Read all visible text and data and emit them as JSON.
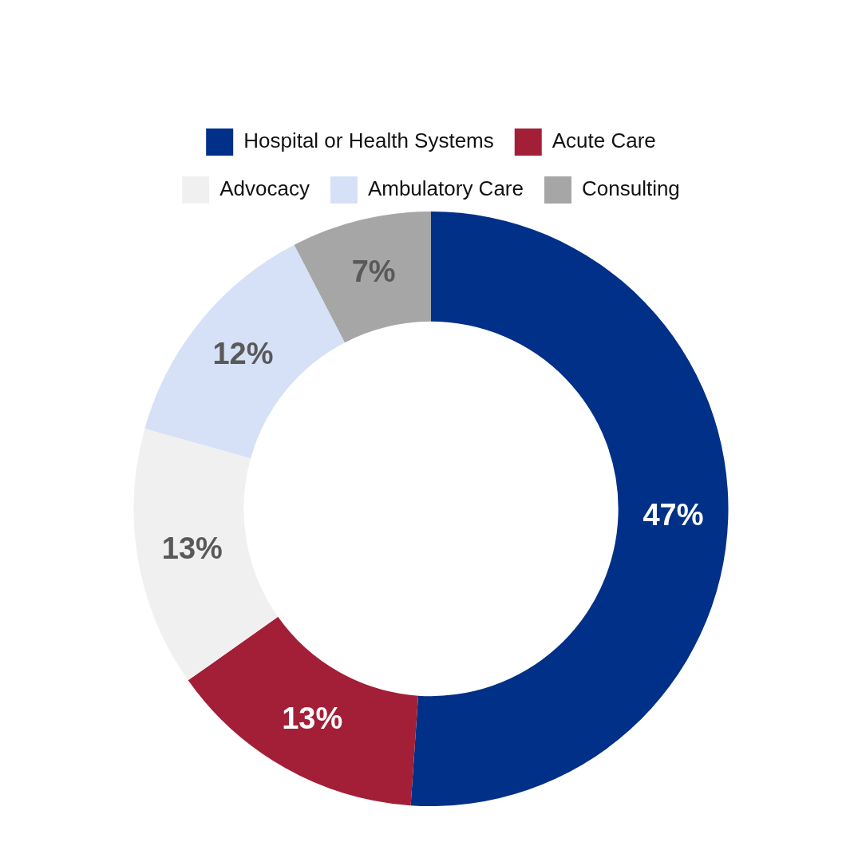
{
  "chart_data": {
    "type": "donut",
    "categories": [
      "Hospital or Health Systems",
      "Acute Care",
      "Advocacy",
      "Ambulatory Care",
      "Consulting"
    ],
    "values": [
      47,
      13,
      13,
      12,
      7
    ],
    "value_labels": [
      "47%",
      "13%",
      "13%",
      "12%",
      "7%"
    ],
    "colors": [
      "#003087",
      "#a31f37",
      "#f0f0f0",
      "#d6e1f7",
      "#a6a6a6"
    ],
    "legend": "top"
  }
}
